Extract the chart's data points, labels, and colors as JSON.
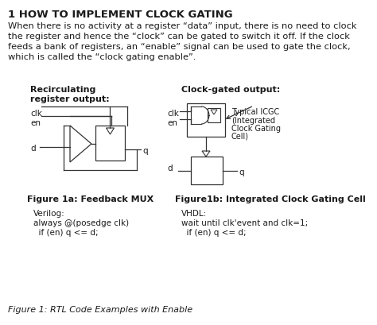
{
  "title": "1 HOW TO IMPLEMENT CLOCK GATING",
  "body_line1": "When there is no activity at a register “data” input, there is no need to clock",
  "body_line2": "the register and hence the “clock” can be gated to switch it off. If the clock",
  "body_line3": "feeds a bank of registers, an “enable” signal can be used to gate the clock,",
  "body_line4": "which is called the “clock gating enable”.",
  "label_left": "Recirculating\nregister output:",
  "label_right": "Clock-gated output:",
  "fig1a_label": "Figure 1a: Feedback MUX",
  "fig1b_label": "Figure1b: Integrated Clock Gating Cell",
  "verilog_label": "Verilog:",
  "verilog_code1": "always @(posedge clk)",
  "verilog_code2": "  if (en) q <= d;",
  "vhdl_label": "VHDL:",
  "vhdl_code1": "wait until clk'event and clk=1;",
  "vhdl_code2": "  if (en) q <= d;",
  "caption": "Figure 1: RTL Code Examples with Enable",
  "bg_color": "#ffffff",
  "text_color": "#1a1a1a",
  "line_color": "#333333",
  "title_size": 9.5,
  "body_size": 8.2,
  "label_size": 8.0,
  "code_size": 7.5,
  "caption_size": 8.0
}
